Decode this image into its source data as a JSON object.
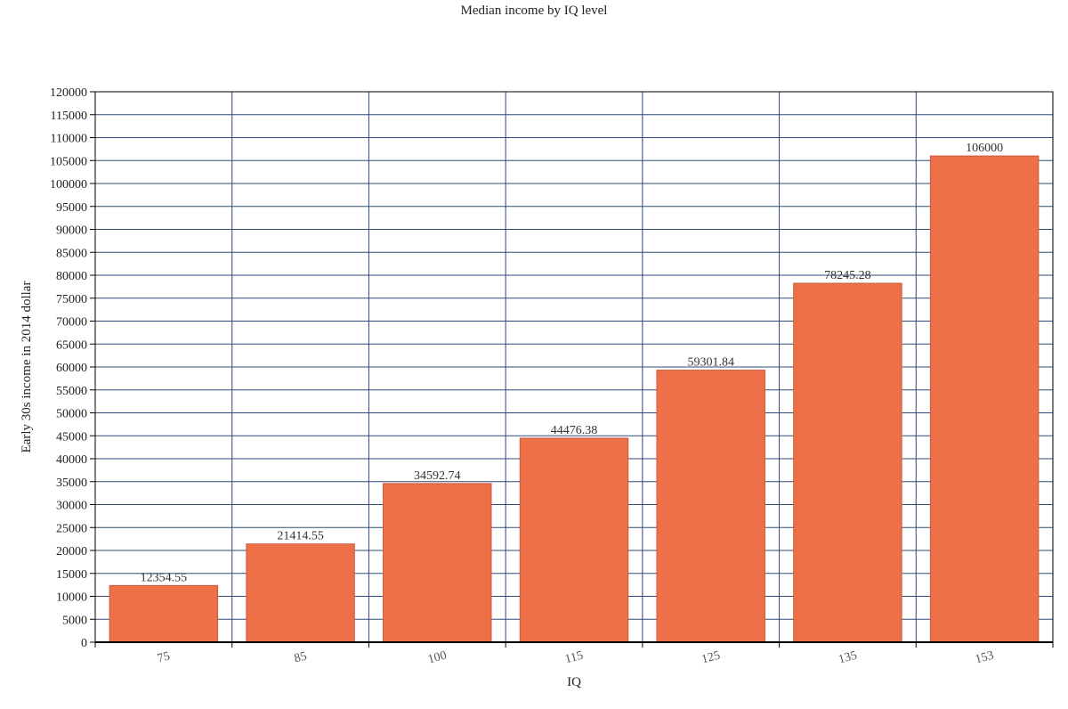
{
  "chart_data": {
    "type": "bar",
    "title": "Median income by IQ level",
    "xlabel": "IQ",
    "ylabel": "Early 30s income in 2014 dollar",
    "categories": [
      "75",
      "85",
      "100",
      "115",
      "125",
      "135",
      "153"
    ],
    "values": [
      12354.55,
      21414.55,
      34592.74,
      44476.38,
      59301.84,
      78245.28,
      106000
    ],
    "data_labels": [
      "12354.55",
      "21414.55",
      "34592.74",
      "44476.38",
      "59301.84",
      "78245.28",
      "106000"
    ],
    "ylim": [
      0,
      120000
    ],
    "ytick_step": 5000,
    "grid": true,
    "legend": "none"
  },
  "colors": {
    "bar_fill": "#ee7048",
    "bar_stroke": "#c9593a",
    "grid": "#2f4a78",
    "axis": "#000000"
  }
}
